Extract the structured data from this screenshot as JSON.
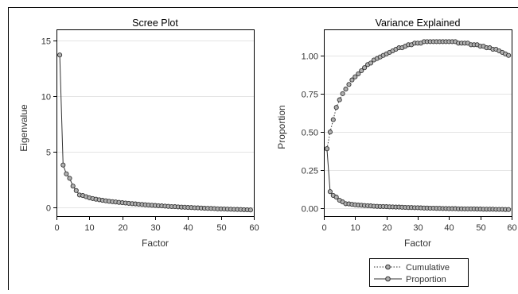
{
  "chart_data": [
    {
      "type": "line",
      "title": "Scree Plot",
      "xlabel": "Factor",
      "ylabel": "Eigenvalue",
      "xlim": [
        0,
        60
      ],
      "ylim": [
        -0.8,
        16
      ],
      "x_ticks": [
        "0",
        "10",
        "20",
        "30",
        "40",
        "50",
        "60"
      ],
      "y_ticks": [
        "0",
        "5",
        "10",
        "15"
      ],
      "grid": "horizontal",
      "series": [
        {
          "style": "solid-circle",
          "x": [
            1,
            2,
            3,
            4,
            5,
            6,
            7,
            8,
            9,
            10,
            11,
            12,
            13,
            14,
            15,
            16,
            17,
            18,
            19,
            20,
            21,
            22,
            23,
            24,
            25,
            26,
            27,
            28,
            29,
            30,
            31,
            32,
            33,
            34,
            35,
            36,
            37,
            38,
            39,
            40,
            41,
            42,
            43,
            44,
            45,
            46,
            47,
            48,
            49,
            50,
            51,
            52,
            53,
            54,
            55,
            56,
            57,
            58,
            59
          ],
          "values": [
            13.7,
            3.8,
            3.0,
            2.6,
            1.9,
            1.5,
            1.1,
            1.05,
            0.95,
            0.85,
            0.78,
            0.72,
            0.67,
            0.62,
            0.58,
            0.54,
            0.5,
            0.47,
            0.44,
            0.41,
            0.38,
            0.35,
            0.32,
            0.3,
            0.27,
            0.25,
            0.22,
            0.2,
            0.18,
            0.16,
            0.14,
            0.12,
            0.1,
            0.08,
            0.06,
            0.05,
            0.03,
            0.01,
            0.0,
            -0.02,
            -0.03,
            -0.05,
            -0.06,
            -0.07,
            -0.09,
            -0.1,
            -0.11,
            -0.12,
            -0.14,
            -0.15,
            -0.16,
            -0.17,
            -0.18,
            -0.19,
            -0.2,
            -0.21,
            -0.22,
            -0.23,
            -0.24
          ]
        }
      ]
    },
    {
      "type": "line",
      "title": "Variance Explained",
      "xlabel": "Factor",
      "ylabel": "Proportion",
      "xlim": [
        0,
        60
      ],
      "ylim": [
        -0.05,
        1.17
      ],
      "x_ticks": [
        "0",
        "10",
        "20",
        "30",
        "40",
        "50",
        "60"
      ],
      "y_ticks": [
        "0.00",
        "0.25",
        "0.50",
        "0.75",
        "1.00"
      ],
      "grid": "horizontal",
      "legend": "bottom",
      "series": [
        {
          "name": "Cumulative",
          "style": "dotted-circle",
          "x": [
            1,
            2,
            3,
            4,
            5,
            6,
            7,
            8,
            9,
            10,
            11,
            12,
            13,
            14,
            15,
            16,
            17,
            18,
            19,
            20,
            21,
            22,
            23,
            24,
            25,
            26,
            27,
            28,
            29,
            30,
            31,
            32,
            33,
            34,
            35,
            36,
            37,
            38,
            39,
            40,
            41,
            42,
            43,
            44,
            45,
            46,
            47,
            48,
            49,
            50,
            51,
            52,
            53,
            54,
            55,
            56,
            57,
            58,
            59
          ],
          "values": [
            0.39,
            0.5,
            0.58,
            0.66,
            0.71,
            0.75,
            0.78,
            0.81,
            0.84,
            0.86,
            0.88,
            0.9,
            0.92,
            0.94,
            0.95,
            0.97,
            0.98,
            0.99,
            1.0,
            1.01,
            1.02,
            1.03,
            1.04,
            1.05,
            1.05,
            1.06,
            1.07,
            1.07,
            1.08,
            1.08,
            1.08,
            1.09,
            1.09,
            1.09,
            1.09,
            1.09,
            1.09,
            1.09,
            1.09,
            1.09,
            1.09,
            1.09,
            1.08,
            1.08,
            1.08,
            1.08,
            1.07,
            1.07,
            1.07,
            1.06,
            1.06,
            1.05,
            1.05,
            1.04,
            1.04,
            1.03,
            1.02,
            1.01,
            1.0
          ]
        },
        {
          "name": "Proportion",
          "style": "solid-circle",
          "x": [
            1,
            2,
            3,
            4,
            5,
            6,
            7,
            8,
            9,
            10,
            11,
            12,
            13,
            14,
            15,
            16,
            17,
            18,
            19,
            20,
            21,
            22,
            23,
            24,
            25,
            26,
            27,
            28,
            29,
            30,
            31,
            32,
            33,
            34,
            35,
            36,
            37,
            38,
            39,
            40,
            41,
            42,
            43,
            44,
            45,
            46,
            47,
            48,
            49,
            50,
            51,
            52,
            53,
            54,
            55,
            56,
            57,
            58,
            59
          ],
          "values": [
            0.39,
            0.11,
            0.085,
            0.074,
            0.054,
            0.043,
            0.031,
            0.03,
            0.027,
            0.024,
            0.022,
            0.021,
            0.019,
            0.018,
            0.017,
            0.015,
            0.014,
            0.013,
            0.013,
            0.012,
            0.011,
            0.01,
            0.009,
            0.009,
            0.008,
            0.007,
            0.006,
            0.006,
            0.005,
            0.005,
            0.004,
            0.003,
            0.003,
            0.002,
            0.002,
            0.001,
            0.001,
            0.0,
            0.0,
            -0.001,
            -0.001,
            -0.001,
            -0.002,
            -0.002,
            -0.003,
            -0.003,
            -0.003,
            -0.003,
            -0.004,
            -0.004,
            -0.005,
            -0.005,
            -0.005,
            -0.005,
            -0.006,
            -0.006,
            -0.006,
            -0.007,
            -0.007
          ]
        }
      ]
    }
  ]
}
